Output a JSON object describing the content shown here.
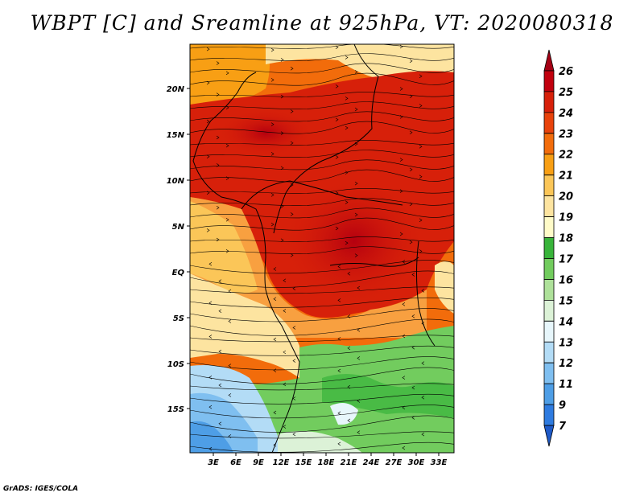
{
  "title": "WBPT [C] and Sreamline at 925hPa, VT: 2020080318",
  "credit": "GrADS: IGES/COLA",
  "map": {
    "lat_ticks": [
      "20N",
      "15N",
      "10N",
      "5N",
      "EQ",
      "5S",
      "10S",
      "15S"
    ],
    "lon_ticks": [
      "3E",
      "6E",
      "9E",
      "12E",
      "15E",
      "18E",
      "21E",
      "24E",
      "27E",
      "30E",
      "33E"
    ]
  },
  "colorbar": {
    "levels": [
      "26",
      "25",
      "24",
      "23",
      "22",
      "21",
      "20",
      "19",
      "18",
      "17",
      "16",
      "15",
      "14",
      "13",
      "12",
      "11",
      "9",
      "7"
    ],
    "colors": [
      "#a50015",
      "#c1000e",
      "#d7200a",
      "#e8420b",
      "#f26c0b",
      "#f89f14",
      "#fbc658",
      "#fde4a0",
      "#fffbc8",
      "#38b43a",
      "#72cc5e",
      "#aee19a",
      "#dcf2d7",
      "#e7f6fb",
      "#b3dcf6",
      "#7fbff0",
      "#4e9ee6",
      "#2e7be0",
      "#1e5ac8"
    ]
  }
}
